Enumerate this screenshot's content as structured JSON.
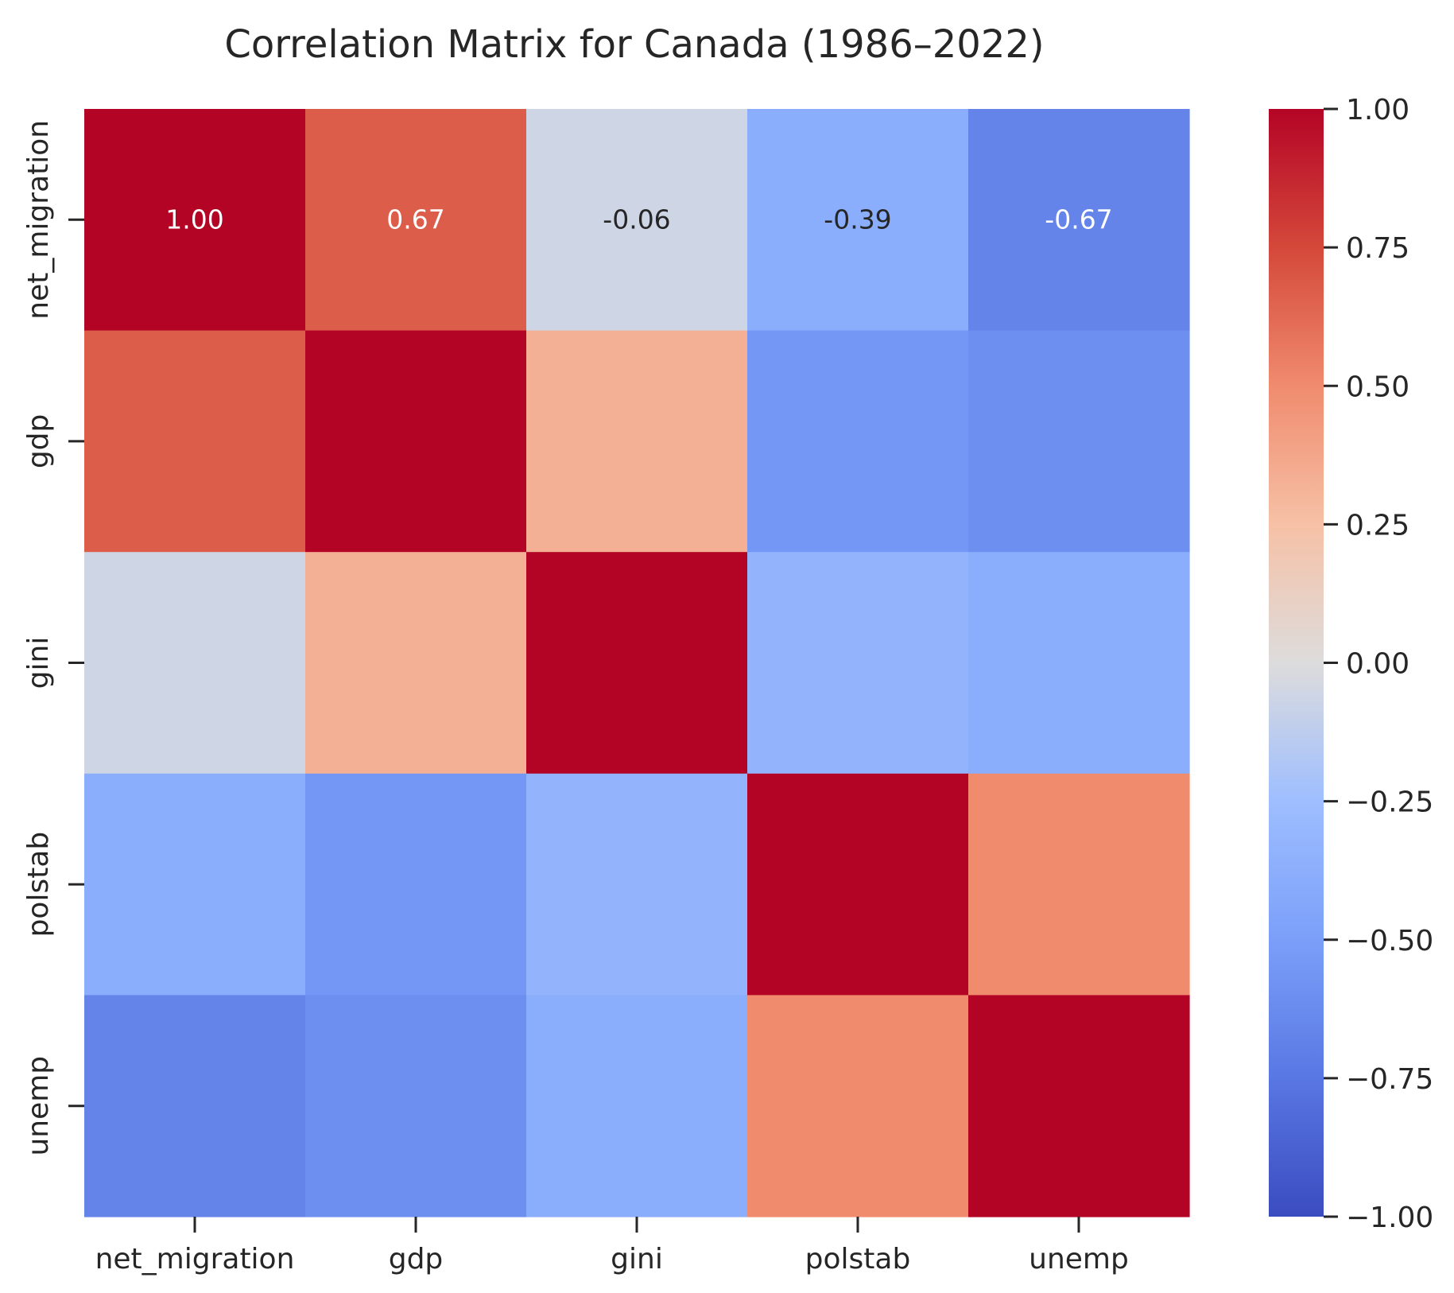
{
  "chart_data": {
    "type": "heatmap",
    "title": "Correlation Matrix for Canada (1986–2022)",
    "xlabel": "",
    "ylabel": "",
    "colormap": "coolwarm",
    "vmin": -1.0,
    "vmax": 1.0,
    "x_categories": [
      "net_migration",
      "gdp",
      "gini",
      "polstab",
      "unemp"
    ],
    "y_categories": [
      "net_migration",
      "gdp",
      "gini",
      "polstab",
      "unemp"
    ],
    "values": [
      [
        1.0,
        0.67,
        -0.06,
        -0.39,
        -0.67
      ],
      [
        0.67,
        1.0,
        0.33,
        -0.55,
        -0.6
      ],
      [
        -0.06,
        0.33,
        1.0,
        -0.33,
        -0.39
      ],
      [
        -0.39,
        -0.55,
        -0.33,
        1.0,
        0.5
      ],
      [
        -0.67,
        -0.6,
        -0.39,
        0.5,
        1.0
      ]
    ],
    "annotated_row": 0,
    "annotations": [
      "1.00",
      "0.67",
      "-0.06",
      "-0.39",
      "-0.67"
    ],
    "colorbar": {
      "ticks": [
        1.0,
        0.75,
        0.5,
        0.25,
        0.0,
        -0.25,
        -0.5,
        -0.75,
        -1.0
      ],
      "tick_labels": [
        "1.00",
        "0.75",
        "0.50",
        "0.25",
        "0.00",
        "−0.25",
        "−0.50",
        "−0.75",
        "−1.00"
      ]
    },
    "grid": false
  }
}
